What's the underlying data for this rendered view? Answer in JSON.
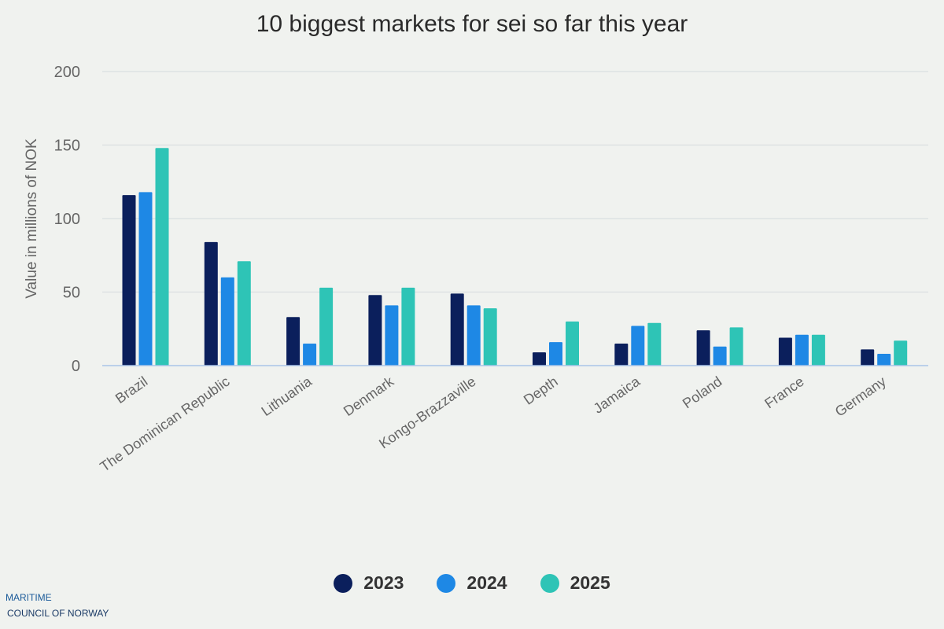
{
  "chart_data": {
    "type": "bar",
    "title": "10 biggest markets for sei so far this year",
    "ylabel": "Value in millions of NOK",
    "xlabel": "",
    "ylim": [
      0,
      200
    ],
    "yticks": [
      0,
      50,
      100,
      150,
      200
    ],
    "grid": true,
    "legend_position": "bottom",
    "categories": [
      "Brazil",
      "The Dominican Republic",
      "Lithuania",
      "Denmark",
      "Kongo-Brazzaville",
      "Depth",
      "Jamaica",
      "Poland",
      "France",
      "Germany"
    ],
    "series": [
      {
        "name": "2023",
        "color": "#0b1f5c",
        "values": [
          116,
          84,
          33,
          48,
          49,
          9,
          15,
          24,
          19,
          11
        ]
      },
      {
        "name": "2024",
        "color": "#1e88e5",
        "values": [
          118,
          60,
          15,
          41,
          41,
          16,
          27,
          13,
          21,
          8
        ]
      },
      {
        "name": "2025",
        "color": "#2ec4b6",
        "values": [
          148,
          71,
          53,
          53,
          39,
          30,
          29,
          26,
          21,
          17
        ]
      }
    ]
  },
  "brand": {
    "line1": "MARITIME",
    "line2": "COUNCIL OF NORWAY"
  }
}
